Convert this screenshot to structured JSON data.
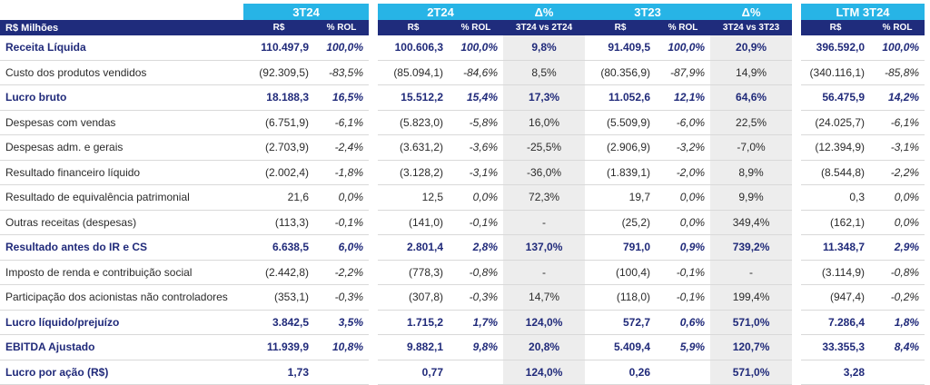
{
  "header": {
    "groups": [
      "3T24",
      "2T24",
      "Δ%",
      "3T23",
      "Δ%",
      "LTM 3T24"
    ],
    "unit_label": "R$ Milhões",
    "subheaders": [
      "R$",
      "% ROL",
      "R$",
      "% ROL",
      "3T24 vs 2T24",
      "R$",
      "% ROL",
      "3T24 vs 3T23",
      "R$",
      "% ROL"
    ]
  },
  "rows": [
    {
      "label": "Receita Líquida",
      "bold": true,
      "values": [
        "110.497,9",
        "100,0%",
        "100.606,3",
        "100,0%",
        "9,8%",
        "91.409,5",
        "100,0%",
        "20,9%",
        "396.592,0",
        "100,0%"
      ]
    },
    {
      "label": "Custo dos produtos vendidos",
      "bold": false,
      "values": [
        "(92.309,5)",
        "-83,5%",
        "(85.094,1)",
        "-84,6%",
        "8,5%",
        "(80.356,9)",
        "-87,9%",
        "14,9%",
        "(340.116,1)",
        "-85,8%"
      ]
    },
    {
      "label": "Lucro bruto",
      "bold": true,
      "values": [
        "18.188,3",
        "16,5%",
        "15.512,2",
        "15,4%",
        "17,3%",
        "11.052,6",
        "12,1%",
        "64,6%",
        "56.475,9",
        "14,2%"
      ]
    },
    {
      "label": "Despesas com vendas",
      "bold": false,
      "values": [
        "(6.751,9)",
        "-6,1%",
        "(5.823,0)",
        "-5,8%",
        "16,0%",
        "(5.509,9)",
        "-6,0%",
        "22,5%",
        "(24.025,7)",
        "-6,1%"
      ]
    },
    {
      "label": "Despesas adm. e gerais",
      "bold": false,
      "values": [
        "(2.703,9)",
        "-2,4%",
        "(3.631,2)",
        "-3,6%",
        "-25,5%",
        "(2.906,9)",
        "-3,2%",
        "-7,0%",
        "(12.394,9)",
        "-3,1%"
      ]
    },
    {
      "label": "Resultado financeiro líquido",
      "bold": false,
      "values": [
        "(2.002,4)",
        "-1,8%",
        "(3.128,2)",
        "-3,1%",
        "-36,0%",
        "(1.839,1)",
        "-2,0%",
        "8,9%",
        "(8.544,8)",
        "-2,2%"
      ]
    },
    {
      "label": "Resultado de equivalência patrimonial",
      "bold": false,
      "values": [
        "21,6",
        "0,0%",
        "12,5",
        "0,0%",
        "72,3%",
        "19,7",
        "0,0%",
        "9,9%",
        "0,3",
        "0,0%"
      ]
    },
    {
      "label": "Outras receitas (despesas)",
      "bold": false,
      "values": [
        "(113,3)",
        "-0,1%",
        "(141,0)",
        "-0,1%",
        "-",
        "(25,2)",
        "0,0%",
        "349,4%",
        "(162,1)",
        "0,0%"
      ]
    },
    {
      "label": "Resultado antes do IR e CS",
      "bold": true,
      "values": [
        "6.638,5",
        "6,0%",
        "2.801,4",
        "2,8%",
        "137,0%",
        "791,0",
        "0,9%",
        "739,2%",
        "11.348,7",
        "2,9%"
      ]
    },
    {
      "label": "Imposto de renda e contribuição social",
      "bold": false,
      "values": [
        "(2.442,8)",
        "-2,2%",
        "(778,3)",
        "-0,8%",
        "-",
        "(100,4)",
        "-0,1%",
        "-",
        "(3.114,9)",
        "-0,8%"
      ]
    },
    {
      "label": "Participação dos acionistas não controladores",
      "bold": false,
      "values": [
        "(353,1)",
        "-0,3%",
        "(307,8)",
        "-0,3%",
        "14,7%",
        "(118,0)",
        "-0,1%",
        "199,4%",
        "(947,4)",
        "-0,2%"
      ]
    },
    {
      "label": "Lucro líquido/prejuízo",
      "bold": true,
      "values": [
        "3.842,5",
        "3,5%",
        "1.715,2",
        "1,7%",
        "124,0%",
        "572,7",
        "0,6%",
        "571,0%",
        "7.286,4",
        "1,8%"
      ]
    },
    {
      "label": "EBITDA Ajustado",
      "bold": true,
      "values": [
        "11.939,9",
        "10,8%",
        "9.882,1",
        "9,8%",
        "20,8%",
        "5.409,4",
        "5,9%",
        "120,7%",
        "33.355,3",
        "8,4%"
      ]
    },
    {
      "label": "Lucro por ação (R$)",
      "bold": true,
      "values": [
        "1,73",
        "",
        "0,77",
        "",
        "124,0%",
        "0,26",
        "",
        "571,0%",
        "3,28",
        ""
      ]
    }
  ]
}
